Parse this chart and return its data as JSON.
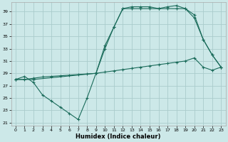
{
  "xlabel": "Humidex (Indice chaleur)",
  "bg_color": "#cce8e8",
  "grid_color": "#aacccc",
  "line_color": "#1a6b5a",
  "xlim": [
    -0.5,
    23.5
  ],
  "ylim": [
    20.5,
    40.5
  ],
  "yticks": [
    21,
    23,
    25,
    27,
    29,
    31,
    33,
    35,
    37,
    39
  ],
  "xticks": [
    0,
    1,
    2,
    3,
    4,
    5,
    6,
    7,
    8,
    9,
    10,
    11,
    12,
    13,
    14,
    15,
    16,
    17,
    18,
    19,
    20,
    21,
    22,
    23
  ],
  "line1_x": [
    0,
    1,
    2,
    3,
    4,
    5,
    6,
    7,
    8,
    9,
    10,
    11,
    12,
    13,
    14,
    15,
    16,
    17,
    18,
    19,
    20,
    21,
    22,
    23
  ],
  "line1_y": [
    28,
    28.5,
    27.5,
    25.5,
    24.5,
    23.5,
    22.5,
    21.5,
    25.0,
    29.0,
    33.5,
    36.5,
    39.5,
    39.5,
    39.5,
    39.5,
    39.5,
    39.5,
    39.5,
    39.5,
    38.0,
    34.5,
    32.0,
    30.0
  ],
  "line2_x": [
    0,
    1,
    2,
    3,
    4,
    5,
    6,
    7,
    8,
    9,
    10,
    11,
    12,
    13,
    14,
    15,
    16,
    17,
    18,
    19,
    20,
    21,
    22,
    23
  ],
  "line2_y": [
    28.0,
    28.0,
    28.2,
    28.4,
    28.5,
    28.6,
    28.7,
    28.8,
    28.9,
    29.0,
    29.2,
    29.4,
    29.6,
    29.8,
    30.0,
    30.2,
    30.4,
    30.6,
    30.8,
    31.0,
    31.5,
    30.0,
    29.5,
    30.0
  ],
  "line3_x": [
    0,
    2,
    9,
    10,
    11,
    12,
    13,
    14,
    15,
    16,
    17,
    18,
    19,
    20,
    21,
    22,
    23
  ],
  "line3_y": [
    28.0,
    28.0,
    29.0,
    33.0,
    36.5,
    39.5,
    39.8,
    39.8,
    39.8,
    39.5,
    39.8,
    40.0,
    39.5,
    38.5,
    34.5,
    32.0,
    30.0
  ]
}
